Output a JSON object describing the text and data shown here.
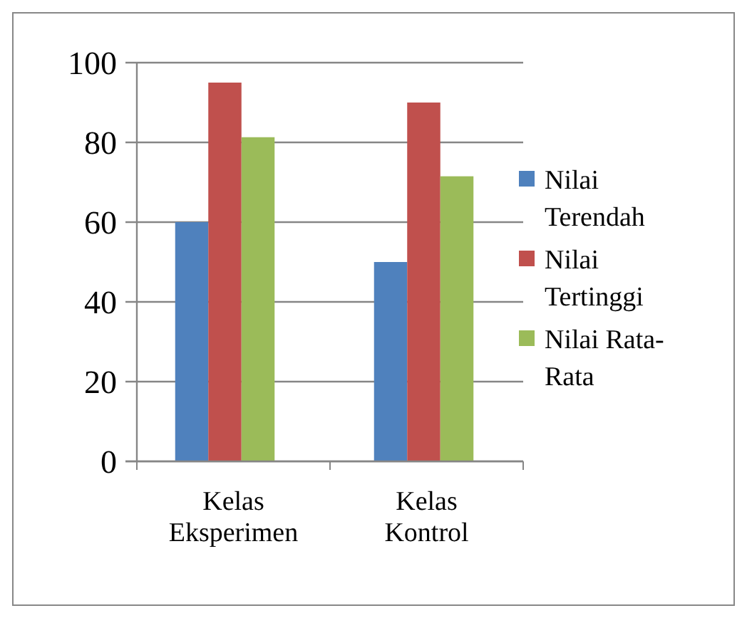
{
  "chart_data": {
    "type": "bar",
    "categories": [
      "Kelas Eksperimen",
      "Kelas Kontrol"
    ],
    "series": [
      {
        "name": "Nilai Terendah",
        "color": "#4f81bd",
        "values": [
          60,
          50
        ]
      },
      {
        "name": "Nilai Tertinggi",
        "color": "#c0504d",
        "values": [
          95,
          90
        ]
      },
      {
        "name": "Nilai Rata-Rata",
        "color": "#9bbb59",
        "values": [
          81.3,
          71.5
        ]
      }
    ],
    "ylim": [
      0,
      100
    ],
    "yticks": [
      0,
      20,
      40,
      60,
      80,
      100
    ],
    "grid": "y",
    "legend": "right"
  }
}
